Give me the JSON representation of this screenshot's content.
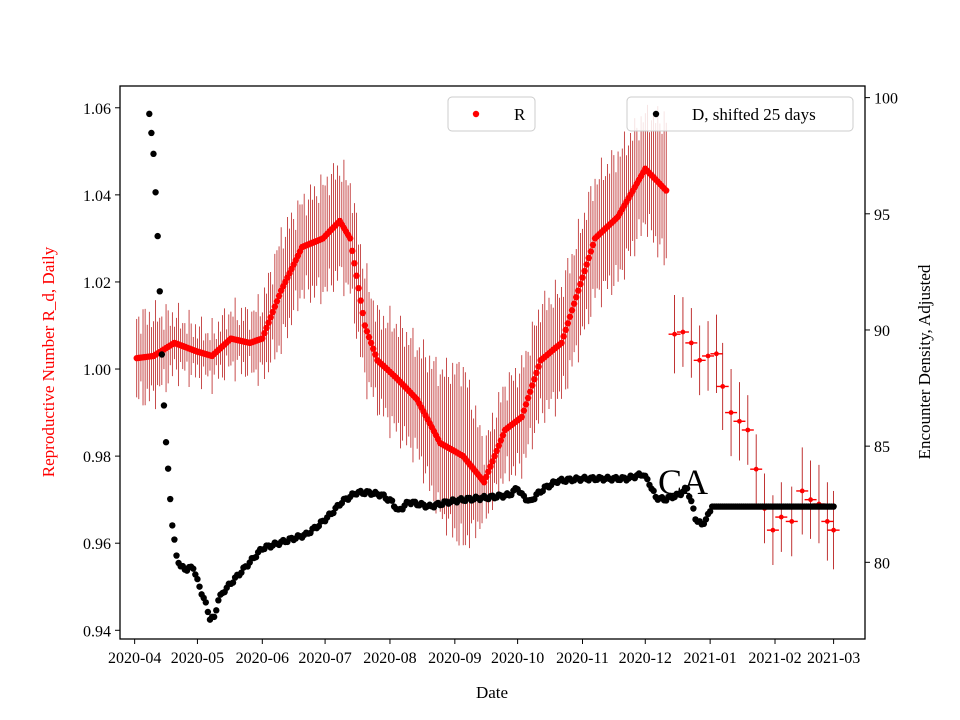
{
  "chart_data": {
    "type": "scatter",
    "title": "",
    "xlabel": "Date",
    "ylabel_left": "Reproductive Number R_d, Daily",
    "ylabel_right": "Encounter Density, Adjusted",
    "annotation": "CA",
    "x_range": [
      "2020-03-25",
      "2021-03-16"
    ],
    "y_left_range": [
      0.938,
      1.065
    ],
    "y_right_range": [
      76.7,
      100.5
    ],
    "x_ticks": [
      "2020-04",
      "2020-05",
      "2020-06",
      "2020-07",
      "2020-08",
      "2020-09",
      "2020-10",
      "2020-11",
      "2020-12",
      "2021-01",
      "2021-02",
      "2021-03"
    ],
    "y_left_ticks": [
      0.94,
      0.96,
      0.98,
      1.0,
      1.02,
      1.04,
      1.06
    ],
    "y_left_tick_labels": [
      "0.94",
      "0.96",
      "0.98",
      "1.00",
      "1.02",
      "1.04",
      "1.06"
    ],
    "y_right_ticks": [
      80,
      85,
      90,
      95,
      100
    ],
    "y_right_tick_labels": [
      "80",
      "85",
      "90",
      "95",
      "100"
    ],
    "colors": {
      "R": "#ff0000",
      "errorbar": "#b00000",
      "D": "#000000",
      "left_axis": "#ff0000"
    },
    "series": [
      {
        "name": "R",
        "axis": "left",
        "marker": "dot-with-errorbars",
        "knots": [
          [
            "2020-04-02",
            1.0025,
            0.009
          ],
          [
            "2020-04-10",
            1.003,
            0.009
          ],
          [
            "2020-04-20",
            1.006,
            0.006
          ],
          [
            "2020-05-01",
            1.004,
            0.005
          ],
          [
            "2020-05-08",
            1.003,
            0.005
          ],
          [
            "2020-05-17",
            1.007,
            0.006
          ],
          [
            "2020-05-26",
            1.006,
            0.006
          ],
          [
            "2020-06-01",
            1.007,
            0.008
          ],
          [
            "2020-06-10",
            1.018,
            0.012
          ],
          [
            "2020-06-20",
            1.028,
            0.01
          ],
          [
            "2020-06-30",
            1.03,
            0.012
          ],
          [
            "2020-07-08",
            1.034,
            0.012
          ],
          [
            "2020-07-13",
            1.03,
            0.012
          ],
          [
            "2020-07-20",
            1.01,
            0.012
          ],
          [
            "2020-07-26",
            1.002,
            0.01
          ],
          [
            "2020-08-04",
            0.998,
            0.012
          ],
          [
            "2020-08-14",
            0.993,
            0.012
          ],
          [
            "2020-08-25",
            0.983,
            0.016
          ],
          [
            "2020-09-05",
            0.98,
            0.02
          ],
          [
            "2020-09-15",
            0.974,
            0.008
          ],
          [
            "2020-09-25",
            0.986,
            0.01
          ],
          [
            "2020-10-03",
            0.989,
            0.011
          ],
          [
            "2020-10-12",
            1.002,
            0.012
          ],
          [
            "2020-10-22",
            1.006,
            0.012
          ],
          [
            "2020-11-07",
            1.03,
            0.013
          ],
          [
            "2020-11-18",
            1.035,
            0.014
          ],
          [
            "2020-12-01",
            1.046,
            0.012
          ],
          [
            "2020-12-11",
            1.041,
            0.016
          ]
        ],
        "sparse_points": [
          [
            "2020-12-15",
            1.008,
            0.009
          ],
          [
            "2020-12-19",
            1.0085,
            0.008
          ],
          [
            "2020-12-23",
            1.006,
            0.008
          ],
          [
            "2020-12-27",
            1.002,
            0.008
          ],
          [
            "2020-12-31",
            1.003,
            0.008
          ],
          [
            "2021-01-04",
            1.0035,
            0.009
          ],
          [
            "2021-01-07",
            0.996,
            0.01
          ],
          [
            "2021-01-11",
            0.99,
            0.01
          ],
          [
            "2021-01-15",
            0.988,
            0.009
          ],
          [
            "2021-01-19",
            0.986,
            0.008
          ],
          [
            "2021-01-23",
            0.977,
            0.008
          ],
          [
            "2021-01-27",
            0.968,
            0.008
          ],
          [
            "2021-01-31",
            0.963,
            0.008
          ],
          [
            "2021-02-04",
            0.966,
            0.008
          ],
          [
            "2021-02-09",
            0.965,
            0.008
          ],
          [
            "2021-02-14",
            0.972,
            0.01
          ],
          [
            "2021-02-18",
            0.97,
            0.009
          ],
          [
            "2021-02-22",
            0.969,
            0.009
          ],
          [
            "2021-02-26",
            0.965,
            0.009
          ],
          [
            "2021-03-01",
            0.963,
            0.009
          ]
        ]
      },
      {
        "name": "D, shifted 25 days",
        "axis": "right",
        "marker": "dot",
        "knots": [
          [
            "2020-04-08",
            99.3
          ],
          [
            "2020-04-09",
            98.4
          ],
          [
            "2020-04-10",
            97.6
          ],
          [
            "2020-04-11",
            96.0
          ],
          [
            "2020-04-12",
            94.0
          ],
          [
            "2020-04-13",
            91.6
          ],
          [
            "2020-04-14",
            89.0
          ],
          [
            "2020-04-15",
            86.8
          ],
          [
            "2020-04-16",
            85.1
          ],
          [
            "2020-04-17",
            84.0
          ],
          [
            "2020-04-18",
            82.8
          ],
          [
            "2020-04-19",
            81.6
          ],
          [
            "2020-04-20",
            80.9
          ],
          [
            "2020-04-21",
            80.3
          ],
          [
            "2020-04-23",
            79.8
          ],
          [
            "2020-04-26",
            79.7
          ],
          [
            "2020-04-29",
            79.8
          ],
          [
            "2020-05-01",
            79.2
          ],
          [
            "2020-05-03",
            78.7
          ],
          [
            "2020-05-05",
            78.2
          ],
          [
            "2020-05-07",
            77.6
          ],
          [
            "2020-05-09",
            77.6
          ],
          [
            "2020-05-11",
            78.4
          ],
          [
            "2020-05-14",
            78.8
          ],
          [
            "2020-05-18",
            79.2
          ],
          [
            "2020-05-22",
            79.6
          ],
          [
            "2020-05-26",
            80.0
          ],
          [
            "2020-06-01",
            80.6
          ],
          [
            "2020-06-08",
            80.8
          ],
          [
            "2020-06-15",
            81.0
          ],
          [
            "2020-06-22",
            81.2
          ],
          [
            "2020-06-28",
            81.6
          ],
          [
            "2020-07-04",
            82.1
          ],
          [
            "2020-07-09",
            82.6
          ],
          [
            "2020-07-16",
            83.0
          ],
          [
            "2020-07-22",
            83.0
          ],
          [
            "2020-07-28",
            82.9
          ],
          [
            "2020-08-02",
            82.6
          ],
          [
            "2020-08-05",
            82.2
          ],
          [
            "2020-08-10",
            82.6
          ],
          [
            "2020-08-20",
            82.4
          ],
          [
            "2020-08-29",
            82.6
          ],
          [
            "2020-09-05",
            82.7
          ],
          [
            "2020-09-18",
            82.8
          ],
          [
            "2020-09-27",
            82.9
          ],
          [
            "2020-10-01",
            83.2
          ],
          [
            "2020-10-03",
            82.9
          ],
          [
            "2020-10-07",
            82.6
          ],
          [
            "2020-10-10",
            82.9
          ],
          [
            "2020-10-14",
            83.2
          ],
          [
            "2020-10-20",
            83.5
          ],
          [
            "2020-11-01",
            83.6
          ],
          [
            "2020-11-12",
            83.6
          ],
          [
            "2020-11-22",
            83.6
          ],
          [
            "2020-11-30",
            83.8
          ],
          [
            "2020-12-03",
            83.4
          ],
          [
            "2020-12-06",
            82.8
          ],
          [
            "2020-12-10",
            82.7
          ],
          [
            "2020-12-13",
            82.8
          ],
          [
            "2020-12-17",
            82.9
          ],
          [
            "2020-12-21",
            83.2
          ],
          [
            "2020-12-23",
            82.6
          ],
          [
            "2020-12-25",
            81.9
          ],
          [
            "2020-12-28",
            81.6
          ],
          [
            "2020-12-31",
            82.0
          ],
          [
            "2021-01-02",
            82.4
          ],
          [
            "2021-03-01",
            82.4
          ]
        ]
      }
    ],
    "legend": [
      {
        "label": "R",
        "position": "top-center"
      },
      {
        "label": "D, shifted 25 days",
        "position": "top-right"
      }
    ]
  }
}
